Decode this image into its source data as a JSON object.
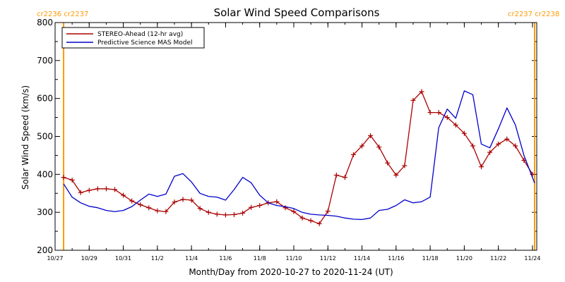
{
  "chart_data": {
    "type": "line",
    "title": "Solar Wind Speed Comparisons",
    "xlabel": "Month/Day from 2020-10-27 to 2020-11-24 (UT)",
    "ylabel": "Solar Wind Speed (km/s)",
    "ylim": [
      200,
      800
    ],
    "yticks": [
      200,
      300,
      400,
      500,
      600,
      700,
      800
    ],
    "xlim": [
      "2020-10-27",
      "2020-11-24"
    ],
    "xticks": [
      "10/27",
      "10/29",
      "10/31",
      "11/2",
      "11/4",
      "11/6",
      "11/8",
      "11/10",
      "11/12",
      "11/14",
      "11/16",
      "11/18",
      "11/20",
      "11/22",
      "11/24"
    ],
    "legend_position": "top-left",
    "carrington_markers": [
      {
        "label": "cr2236 cr2237",
        "date": "2020-10-27T12:00",
        "side": "left",
        "color": "#ff9900"
      },
      {
        "label": "cr2237 cr2238",
        "date": "2020-11-24T03:00",
        "side": "right",
        "color": "#ff9900"
      }
    ],
    "series": [
      {
        "name": "STEREO-Ahead (12-hr avg)",
        "color": "#aa0000",
        "markers": true,
        "points": [
          [
            "2020-10-27T12:00",
            392
          ],
          [
            "2020-10-28T00:00",
            385
          ],
          [
            "2020-10-28T12:00",
            352
          ],
          [
            "2020-10-29T00:00",
            358
          ],
          [
            "2020-10-29T12:00",
            362
          ],
          [
            "2020-10-30T00:00",
            362
          ],
          [
            "2020-10-30T12:00",
            360
          ],
          [
            "2020-10-31T00:00",
            345
          ],
          [
            "2020-10-31T12:00",
            330
          ],
          [
            "2020-11-01T00:00",
            320
          ],
          [
            "2020-11-01T12:00",
            312
          ],
          [
            "2020-11-02T00:00",
            304
          ],
          [
            "2020-11-02T12:00",
            302
          ],
          [
            "2020-11-03T00:00",
            327
          ],
          [
            "2020-11-03T12:00",
            334
          ],
          [
            "2020-11-04T00:00",
            332
          ],
          [
            "2020-11-04T12:00",
            310
          ],
          [
            "2020-11-05T00:00",
            300
          ],
          [
            "2020-11-05T12:00",
            295
          ],
          [
            "2020-11-06T00:00",
            293
          ],
          [
            "2020-11-06T12:00",
            294
          ],
          [
            "2020-11-07T00:00",
            298
          ],
          [
            "2020-11-07T12:00",
            313
          ],
          [
            "2020-11-08T00:00",
            318
          ],
          [
            "2020-11-08T12:00",
            325
          ],
          [
            "2020-11-09T00:00",
            328
          ],
          [
            "2020-11-09T12:00",
            312
          ],
          [
            "2020-11-10T00:00",
            302
          ],
          [
            "2020-11-10T12:00",
            285
          ],
          [
            "2020-11-11T00:00",
            278
          ],
          [
            "2020-11-11T12:00",
            270
          ],
          [
            "2020-11-12T00:00",
            303
          ],
          [
            "2020-11-12T12:00",
            398
          ],
          [
            "2020-11-13T00:00",
            392
          ],
          [
            "2020-11-13T12:00",
            452
          ],
          [
            "2020-11-14T00:00",
            475
          ],
          [
            "2020-11-14T12:00",
            502
          ],
          [
            "2020-11-15T00:00",
            472
          ],
          [
            "2020-11-15T12:00",
            430
          ],
          [
            "2020-11-16T00:00",
            398
          ],
          [
            "2020-11-16T12:00",
            423
          ],
          [
            "2020-11-17T00:00",
            595
          ],
          [
            "2020-11-17T12:00",
            618
          ],
          [
            "2020-11-18T00:00",
            563
          ],
          [
            "2020-11-18T12:00",
            563
          ],
          [
            "2020-11-19T00:00",
            550
          ],
          [
            "2020-11-19T12:00",
            530
          ],
          [
            "2020-11-20T00:00",
            508
          ],
          [
            "2020-11-20T12:00",
            475
          ],
          [
            "2020-11-21T00:00",
            420
          ],
          [
            "2020-11-21T12:00",
            458
          ],
          [
            "2020-11-22T00:00",
            480
          ],
          [
            "2020-11-22T12:00",
            493
          ],
          [
            "2020-11-23T00:00",
            475
          ],
          [
            "2020-11-23T12:00",
            437
          ],
          [
            "2020-11-24T00:00",
            400
          ]
        ]
      },
      {
        "name": "Predictive Science MAS Model",
        "color": "#0000cc",
        "markers": false,
        "points": [
          [
            "2020-10-27T12:00",
            375
          ],
          [
            "2020-10-28T00:00",
            340
          ],
          [
            "2020-10-28T12:00",
            325
          ],
          [
            "2020-10-29T00:00",
            316
          ],
          [
            "2020-10-29T12:00",
            312
          ],
          [
            "2020-10-30T00:00",
            305
          ],
          [
            "2020-10-30T12:00",
            302
          ],
          [
            "2020-10-31T00:00",
            305
          ],
          [
            "2020-10-31T12:00",
            315
          ],
          [
            "2020-11-01T00:00",
            332
          ],
          [
            "2020-11-01T12:00",
            348
          ],
          [
            "2020-11-02T00:00",
            342
          ],
          [
            "2020-11-02T12:00",
            348
          ],
          [
            "2020-11-03T00:00",
            395
          ],
          [
            "2020-11-03T12:00",
            402
          ],
          [
            "2020-11-04T00:00",
            380
          ],
          [
            "2020-11-04T12:00",
            350
          ],
          [
            "2020-11-05T00:00",
            342
          ],
          [
            "2020-11-05T12:00",
            340
          ],
          [
            "2020-11-06T00:00",
            332
          ],
          [
            "2020-11-06T12:00",
            360
          ],
          [
            "2020-11-07T00:00",
            392
          ],
          [
            "2020-11-07T12:00",
            378
          ],
          [
            "2020-11-08T00:00",
            345
          ],
          [
            "2020-11-08T12:00",
            325
          ],
          [
            "2020-11-09T00:00",
            318
          ],
          [
            "2020-11-09T12:00",
            315
          ],
          [
            "2020-11-10T00:00",
            310
          ],
          [
            "2020-11-10T12:00",
            300
          ],
          [
            "2020-11-11T00:00",
            295
          ],
          [
            "2020-11-11T12:00",
            293
          ],
          [
            "2020-11-12T00:00",
            292
          ],
          [
            "2020-11-12T12:00",
            290
          ],
          [
            "2020-11-13T00:00",
            285
          ],
          [
            "2020-11-13T12:00",
            282
          ],
          [
            "2020-11-14T00:00",
            281
          ],
          [
            "2020-11-14T12:00",
            285
          ],
          [
            "2020-11-15T00:00",
            305
          ],
          [
            "2020-11-15T12:00",
            308
          ],
          [
            "2020-11-16T00:00",
            318
          ],
          [
            "2020-11-16T12:00",
            333
          ],
          [
            "2020-11-17T00:00",
            325
          ],
          [
            "2020-11-17T12:00",
            328
          ],
          [
            "2020-11-18T00:00",
            340
          ],
          [
            "2020-11-18T12:00",
            523
          ],
          [
            "2020-11-19T00:00",
            572
          ],
          [
            "2020-11-19T12:00",
            548
          ],
          [
            "2020-11-20T00:00",
            620
          ],
          [
            "2020-11-20T12:00",
            610
          ],
          [
            "2020-11-21T00:00",
            480
          ],
          [
            "2020-11-21T12:00",
            470
          ],
          [
            "2020-11-22T00:00",
            520
          ],
          [
            "2020-11-22T12:00",
            575
          ],
          [
            "2020-11-23T00:00",
            530
          ],
          [
            "2020-11-23T12:00",
            450
          ],
          [
            "2020-11-24T03:00",
            377
          ]
        ]
      }
    ]
  }
}
